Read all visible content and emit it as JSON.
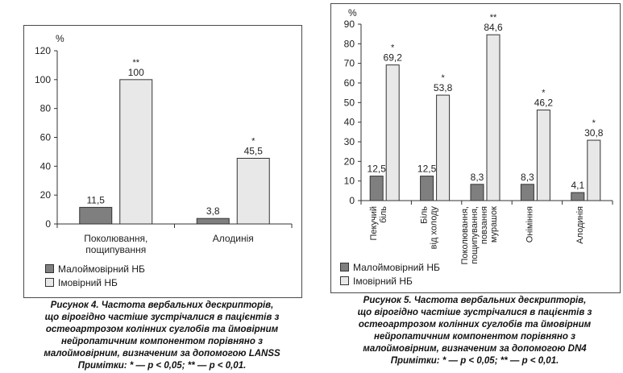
{
  "colors": {
    "low": "#7f7f7f",
    "high": "#e8e8e8",
    "axis": "#333333"
  },
  "chart_data": [
    {
      "type": "bar",
      "ylabel": "%",
      "ylim": [
        0,
        120
      ],
      "yticks": [
        0,
        20,
        40,
        60,
        80,
        100,
        120
      ],
      "grid": false,
      "categories": [
        {
          "lines": [
            "Поколювання,",
            "пощипування"
          ]
        },
        {
          "lines": [
            "Алодинія"
          ]
        }
      ],
      "series": [
        {
          "name": "Малоймовірний НБ",
          "values": [
            11.5,
            3.8
          ],
          "labels": [
            "11,5",
            "3,8"
          ],
          "sig": [
            "",
            ""
          ]
        },
        {
          "name": "Імовірний НБ",
          "values": [
            100,
            45.5
          ],
          "labels": [
            "100",
            "45,5"
          ],
          "sig": [
            "**",
            "*"
          ]
        }
      ],
      "legend_position": "bottom-left",
      "caption": [
        "Рисунок 4. Частота вербальних дескрипторів,",
        "що вірогідно частіше зустрічалися в пацієнтів з",
        "остеоартрозом колінних суглобів та ймовірним",
        "нейропатичним компонентом порівняно з",
        "малоймовірним, визначеним за допомогою LANSS",
        "Примітки: * — р < 0,05; ** — р < 0,01."
      ]
    },
    {
      "type": "bar",
      "ylabel": "%",
      "ylim": [
        0,
        90
      ],
      "yticks": [
        0,
        10,
        20,
        30,
        40,
        50,
        60,
        70,
        80,
        90
      ],
      "grid": false,
      "categories": [
        {
          "lines": [
            "Пекучий",
            "біль"
          ]
        },
        {
          "lines": [
            "Біль",
            "від холоду"
          ]
        },
        {
          "lines": [
            "Поколювання,",
            "пощипування,",
            "повзання",
            "мурашок"
          ]
        },
        {
          "lines": [
            "Оніміння"
          ]
        },
        {
          "lines": [
            "Алодинія"
          ]
        }
      ],
      "series": [
        {
          "name": "Малоймовірний НБ",
          "values": [
            12.5,
            12.5,
            8.3,
            8.3,
            4.1
          ],
          "labels": [
            "12,5",
            "12,5",
            "8,3",
            "8,3",
            "4,1"
          ],
          "sig": [
            "",
            "",
            "",
            "",
            ""
          ]
        },
        {
          "name": "Імовірний НБ",
          "values": [
            69.2,
            53.8,
            84.6,
            46.2,
            30.8
          ],
          "labels": [
            "69,2",
            "53,8",
            "84,6",
            "46,2",
            "30,8"
          ],
          "sig": [
            "*",
            "*",
            "**",
            "*",
            "*"
          ]
        }
      ],
      "legend_position": "bottom-left",
      "caption": [
        "Рисунок 5. Частота вербальних дескрипторів,",
        "що вірогідно частіше зустрічалися в пацієнтів з",
        "остеоартрозом колінних суглобів та ймовірним",
        "нейропатичним компонентом порівняно з",
        "малоймовірним, визначеним за допомогою DN4",
        "Примітки: * — р < 0,05; ** — р < 0,01."
      ]
    }
  ]
}
